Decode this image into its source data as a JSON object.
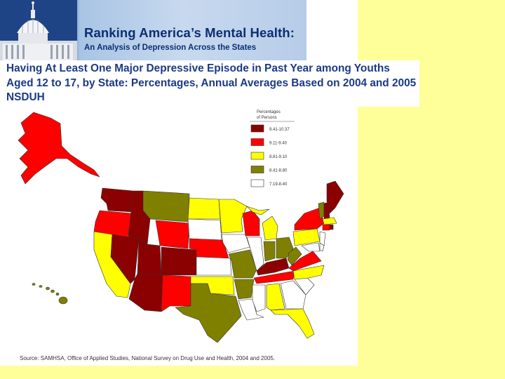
{
  "header": {
    "title": "Ranking America’s Mental Health:",
    "subtitle": "An Analysis of Depression Across the States",
    "image": "capitol-dome"
  },
  "chart_title": "Having At Least One Major Depressive Episode in Past Year among Youths Aged 12 to 17, by State: Percentages, Annual Averages Based on 2004 and 2005 NSDUH",
  "legend": {
    "title_line1": "Percentages",
    "title_line2": "of Persons",
    "items": [
      {
        "label": "9.41-10.37",
        "color": "#8b0000"
      },
      {
        "label": "9.11-9.40",
        "color": "#ff0000"
      },
      {
        "label": "8.81-9.10",
        "color": "#ffff00"
      },
      {
        "label": "8.41-8.80",
        "color": "#808000"
      },
      {
        "label": "7.19-8.40",
        "color": "#ffffff"
      }
    ]
  },
  "colors": {
    "background": "#ffff99",
    "header_text": "#0b2f73",
    "title_text": "#1b3a85"
  },
  "source": "Source: SAMHSA, Office of Applied Studies, National Survey on Drug Use and Health, 2004 and 2005."
}
